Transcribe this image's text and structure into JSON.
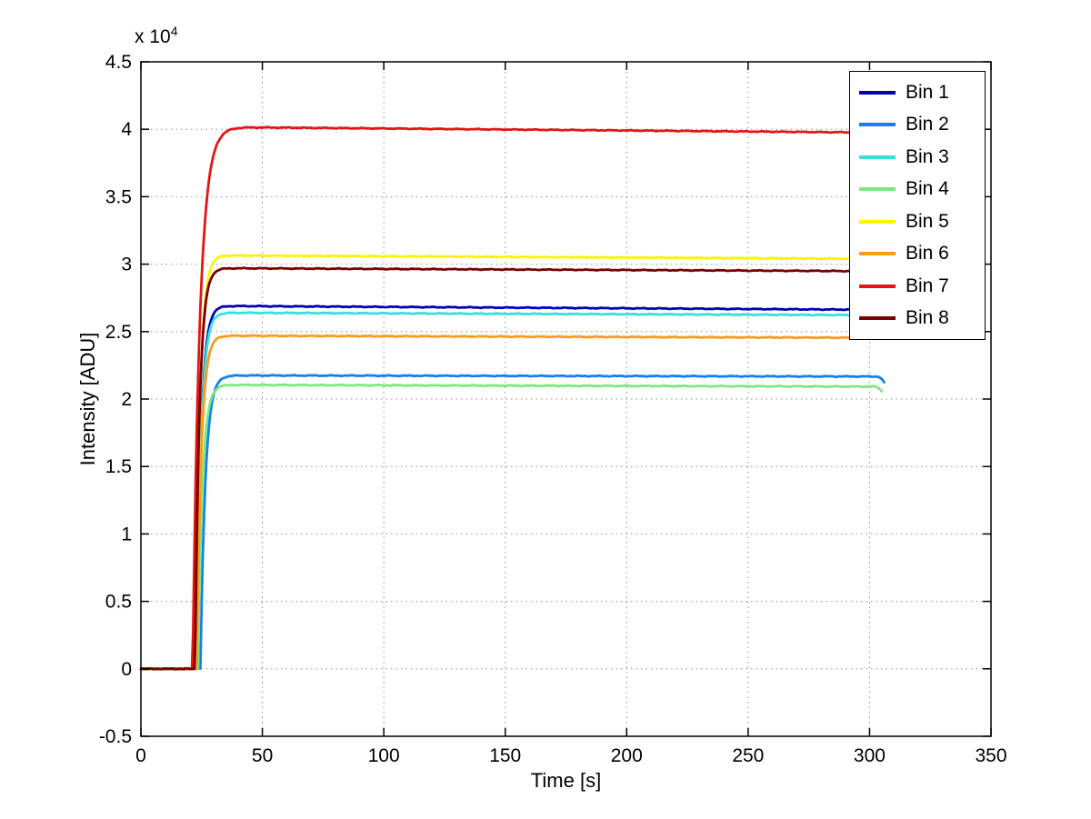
{
  "chart_data": {
    "type": "line",
    "title": "",
    "xlabel": "Time [s]",
    "ylabel": "Intensity [ADU]",
    "y_axis_multiplier": {
      "text": "x 10",
      "exp": "4"
    },
    "xlim": [
      0,
      350
    ],
    "ylim": [
      -5000,
      45000
    ],
    "xticks": [
      0,
      50,
      100,
      150,
      200,
      250,
      300,
      350
    ],
    "yticks": [
      {
        "value": -5000,
        "label": "-0.5"
      },
      {
        "value": 0,
        "label": "0"
      },
      {
        "value": 5000,
        "label": "0.5"
      },
      {
        "value": 10000,
        "label": "1"
      },
      {
        "value": 15000,
        "label": "1.5"
      },
      {
        "value": 20000,
        "label": "2"
      },
      {
        "value": 25000,
        "label": "2.5"
      },
      {
        "value": 30000,
        "label": "3"
      },
      {
        "value": 35000,
        "label": "3.5"
      },
      {
        "value": 40000,
        "label": "4"
      },
      {
        "value": 45000,
        "label": "4.5"
      }
    ],
    "grid": true,
    "grid_style": "dotted",
    "grid_color": "#8c8c8c",
    "axis_color": "#000000",
    "legend_position": "top-right",
    "series": [
      {
        "name": "Bin 1",
        "color": "#0000b4",
        "baseline": 0,
        "plateau": 26900,
        "t_start": 23.0,
        "tau": 1.8,
        "end": 303,
        "drift": 280,
        "end_dip": 0
      },
      {
        "name": "Bin 2",
        "color": "#1180f0",
        "baseline": 0,
        "plateau": 21750,
        "t_start": 24.5,
        "tau": 2.0,
        "end": 306,
        "drift": 80,
        "end_dip": 450
      },
      {
        "name": "Bin 3",
        "color": "#37dfdb",
        "baseline": 0,
        "plateau": 26400,
        "t_start": 23.0,
        "tau": 1.8,
        "end": 304,
        "drift": 180,
        "end_dip": 200
      },
      {
        "name": "Bin 4",
        "color": "#7fe77f",
        "baseline": 0,
        "plateau": 21050,
        "t_start": 23.5,
        "tau": 1.8,
        "end": 305,
        "drift": 130,
        "end_dip": 350
      },
      {
        "name": "Bin 5",
        "color": "#fbf300",
        "baseline": 0,
        "plateau": 30650,
        "t_start": 22.5,
        "tau": 1.8,
        "end": 303,
        "drift": 260,
        "end_dip": 0
      },
      {
        "name": "Bin 6",
        "color": "#fb9b1e",
        "baseline": 0,
        "plateau": 24700,
        "t_start": 23.0,
        "tau": 1.8,
        "end": 303,
        "drift": 160,
        "end_dip": 0
      },
      {
        "name": "Bin 7",
        "color": "#e41515",
        "baseline": 0,
        "plateau": 40150,
        "t_start": 21.3,
        "tau": 2.9,
        "end": 293,
        "drift": 380,
        "end_dip": 0
      },
      {
        "name": "Bin 8",
        "color": "#780000",
        "baseline": 0,
        "plateau": 29700,
        "t_start": 22.3,
        "tau": 1.8,
        "end": 303,
        "drift": 220,
        "end_dip": 0
      }
    ]
  }
}
